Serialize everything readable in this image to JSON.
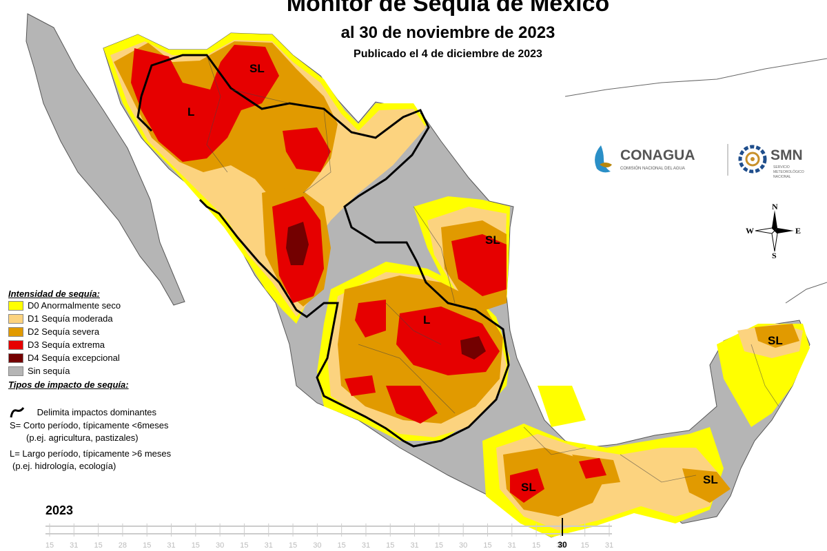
{
  "title": "Monitor de Sequía de México",
  "subtitle": "al 30 de noviembre de 2023",
  "published": "Publicado el 4 de diciembre de 2023",
  "legend": {
    "heading": "Intensidad de sequía:",
    "items": [
      {
        "code": "D0",
        "label": "D0 Anormalmente seco",
        "color": "#ffff00"
      },
      {
        "code": "D1",
        "label": "D1 Sequía moderada",
        "color": "#fcd37f"
      },
      {
        "code": "D2",
        "label": "D2 Sequía severa",
        "color": "#e19a00"
      },
      {
        "code": "D3",
        "label": "D3 Sequía extrema",
        "color": "#e60000"
      },
      {
        "code": "D4",
        "label": "D4 Sequía excepcional",
        "color": "#730000"
      },
      {
        "code": "none",
        "label": "Sin sequía",
        "color": "#b5b5b5"
      }
    ]
  },
  "impacts": {
    "heading": "Tipos de impacto de sequía:",
    "line_label": "Delimita impactos dominantes",
    "short": "S= Corto período, típicamente <6meses",
    "short_example": "(p.ej. agricultura, pastizales)",
    "long": "L= Largo período, típicamente >6 meses",
    "long_example": "(p.ej. hidrología, ecología)"
  },
  "map_labels": {
    "nw": "L",
    "north": "SL",
    "ne": "SL",
    "center": "L",
    "yucatan": "SL",
    "oaxaca": "SL",
    "chiapas": "SL"
  },
  "compass": {
    "n": "N",
    "s": "S",
    "e": "E",
    "w": "W"
  },
  "logos": {
    "conagua_name": "CONAGUA",
    "conagua_sub": "COMISIÓN NACIONAL DEL AGUA",
    "smn_name": "SMN",
    "smn_sub1": "SERVICIO",
    "smn_sub2": "METEOROLÓGICO",
    "smn_sub3": "NACIONAL"
  },
  "timeline": {
    "year": "2023",
    "ticks": [
      "15",
      "31",
      "15",
      "28",
      "15",
      "31",
      "15",
      "30",
      "15",
      "31",
      "15",
      "30",
      "15",
      "31",
      "15",
      "31",
      "15",
      "30",
      "15",
      "31",
      "15",
      "30",
      "15",
      "31"
    ],
    "current": "30"
  }
}
